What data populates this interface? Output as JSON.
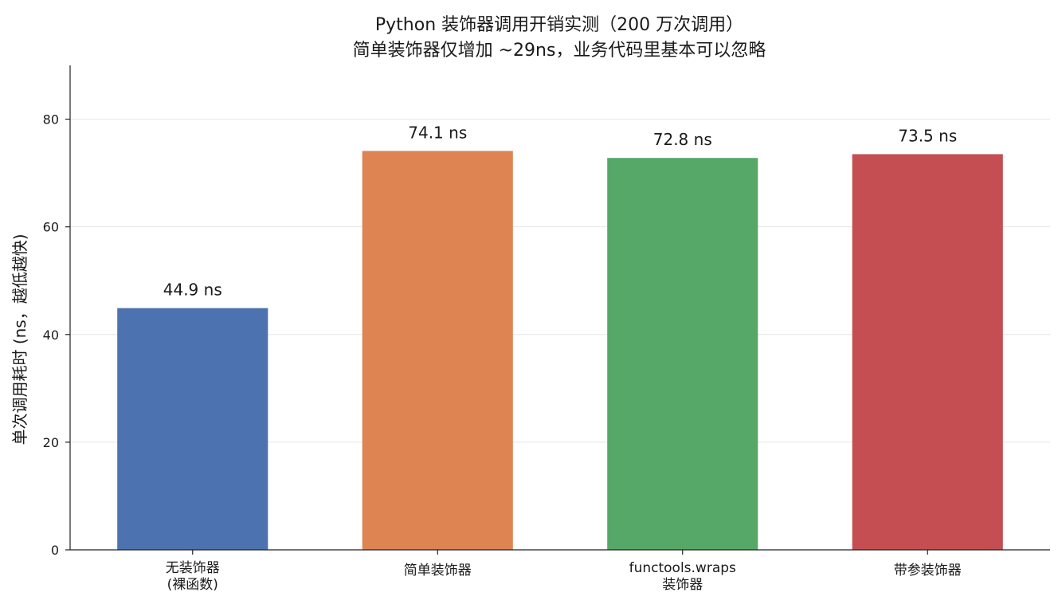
{
  "chart_data": {
    "type": "bar",
    "title_lines": [
      "Python 装饰器调用开销实测（200 万次调用）",
      "简单装饰器仅增加 ~29ns，业务代码里基本可以忽略"
    ],
    "xlabel": "",
    "ylabel": "单次调用耗时 (ns，越低越快)",
    "categories": [
      [
        "无装饰器",
        "(裸函数)"
      ],
      [
        "简单装饰器"
      ],
      [
        "functools.wraps",
        "装饰器"
      ],
      [
        "带参装饰器"
      ]
    ],
    "values": [
      44.9,
      74.1,
      72.8,
      73.5
    ],
    "value_labels": [
      "44.9 ns",
      "74.1 ns",
      "72.8 ns",
      "73.5 ns"
    ],
    "colors": [
      "#4c72b0",
      "#dd8452",
      "#55a868",
      "#c44e52"
    ],
    "ylim": [
      0,
      90
    ],
    "yticks": [
      0,
      20,
      40,
      60,
      80
    ],
    "grid": "horizontal",
    "legend": "none"
  }
}
